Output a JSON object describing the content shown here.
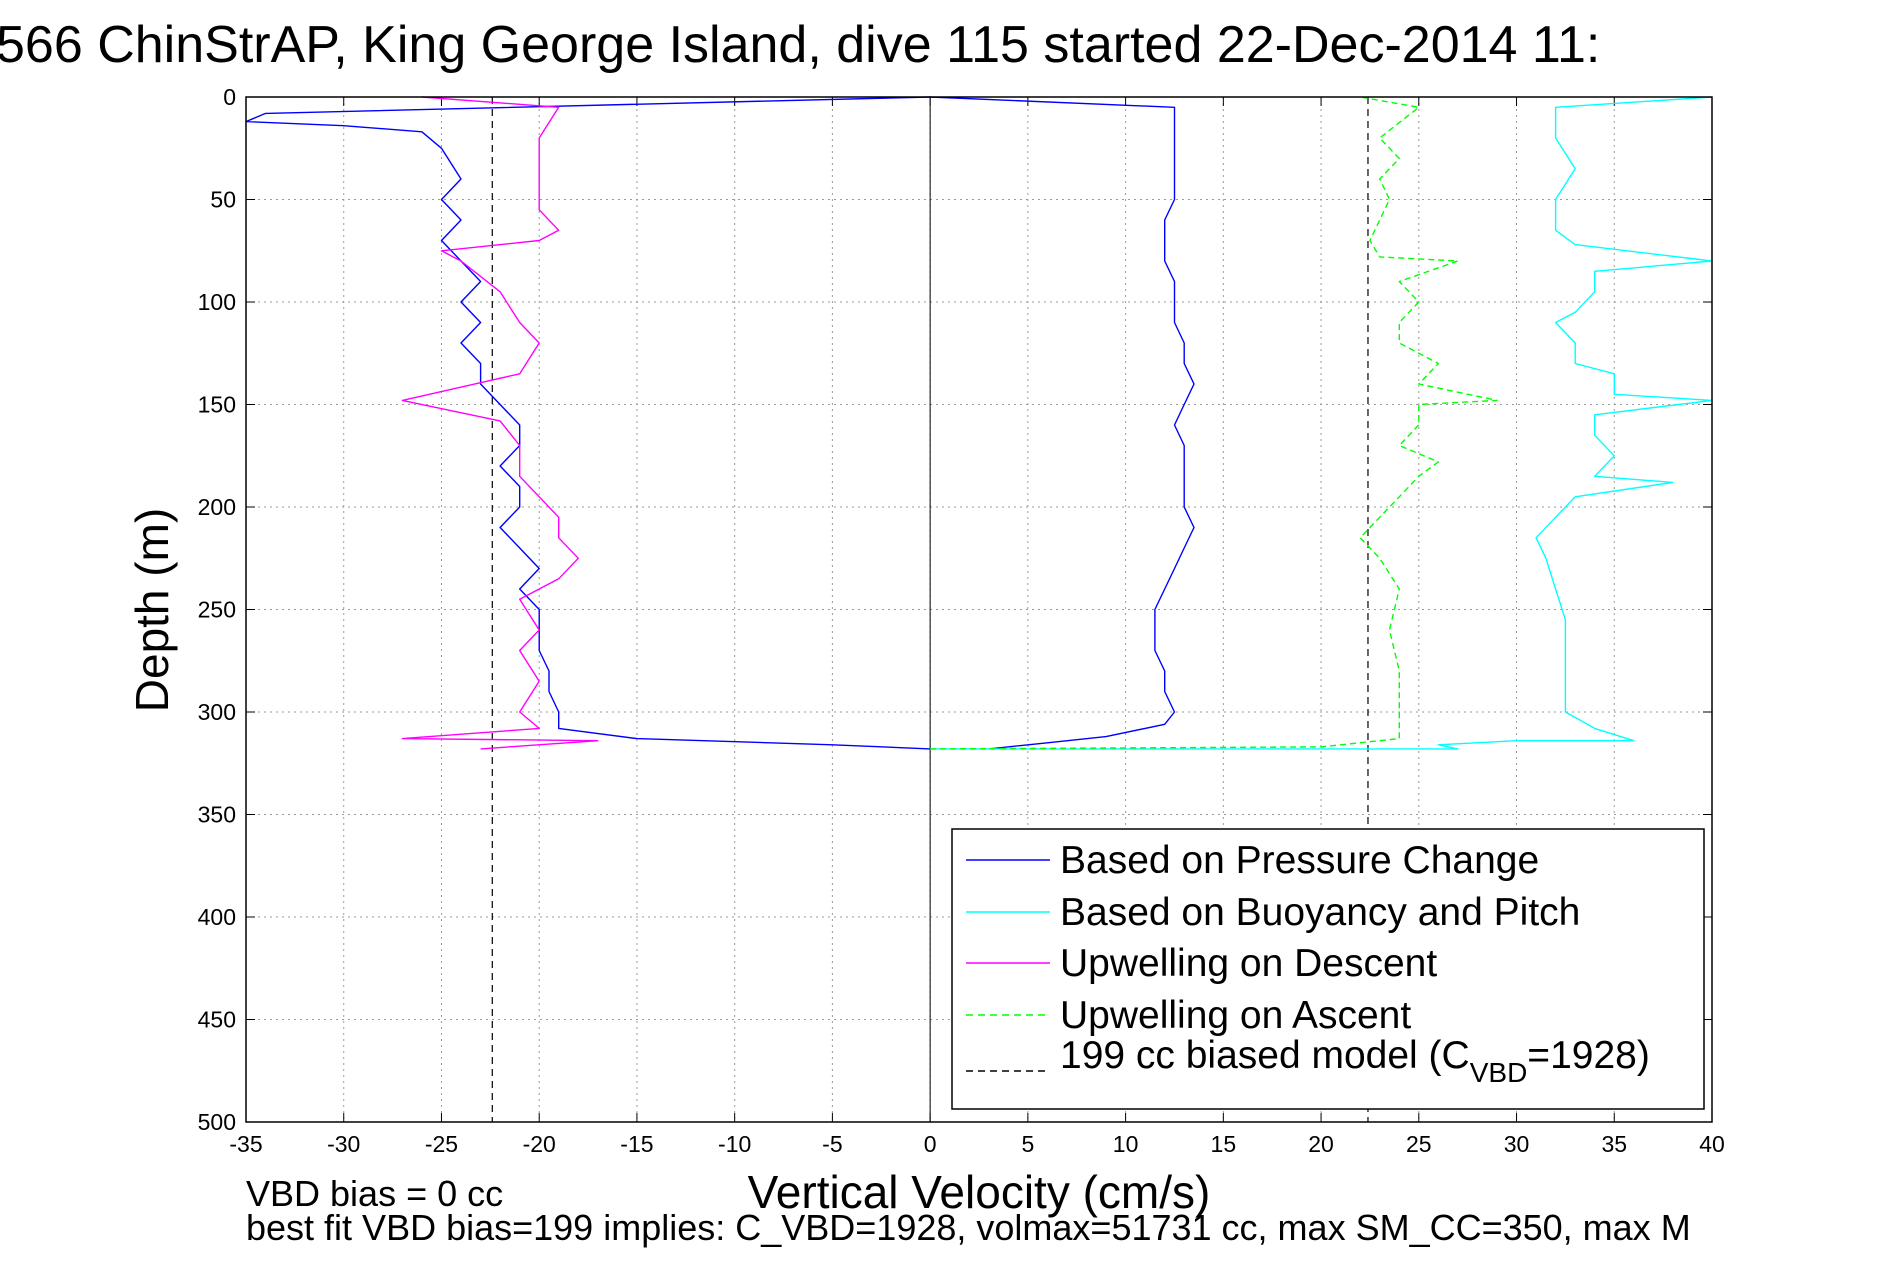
{
  "chart_data": {
    "type": "line",
    "title": "566 ChinStrAP, King George Island, dive 115 started 22-Dec-2014 11:",
    "xlabel": "Vertical Velocity (cm/s)",
    "ylabel": "Depth (m)",
    "xlim": [
      -35,
      40
    ],
    "ylim": [
      0,
      500
    ],
    "y_reversed": true,
    "grid": true,
    "legend_position": "bottom-right",
    "x_ticks": [
      "-35",
      "-30",
      "-25",
      "-20",
      "-15",
      "-10",
      "-5",
      "0",
      "5",
      "10",
      "15",
      "20",
      "25",
      "30",
      "35",
      "40"
    ],
    "y_ticks": [
      "0",
      "50",
      "100",
      "150",
      "200",
      "250",
      "300",
      "350",
      "400",
      "450",
      "500"
    ],
    "reference_lines": {
      "model_descent_x": -22.4,
      "model_ascent_x": 22.4,
      "zero_x": 0
    },
    "series": [
      {
        "name": "Based on Pressure Change",
        "color": "#0000ff",
        "style": "solid",
        "points": [
          [
            0,
            0
          ],
          [
            -34,
            8
          ],
          [
            -35,
            12
          ],
          [
            -30,
            14
          ],
          [
            -26,
            17
          ],
          [
            -25,
            25
          ],
          [
            -24,
            40
          ],
          [
            -25,
            50
          ],
          [
            -24,
            60
          ],
          [
            -25,
            70
          ],
          [
            -24,
            80
          ],
          [
            -23,
            90
          ],
          [
            -24,
            100
          ],
          [
            -23,
            110
          ],
          [
            -24,
            120
          ],
          [
            -23,
            130
          ],
          [
            -23,
            140
          ],
          [
            -22,
            150
          ],
          [
            -21,
            160
          ],
          [
            -21,
            170
          ],
          [
            -22,
            180
          ],
          [
            -21,
            190
          ],
          [
            -21,
            200
          ],
          [
            -22,
            210
          ],
          [
            -21,
            220
          ],
          [
            -20,
            230
          ],
          [
            -21,
            240
          ],
          [
            -20,
            250
          ],
          [
            -20,
            260
          ],
          [
            -20,
            270
          ],
          [
            -19.5,
            280
          ],
          [
            -19.5,
            290
          ],
          [
            -19,
            300
          ],
          [
            -19,
            308
          ],
          [
            -15,
            313
          ],
          [
            -5,
            316
          ],
          [
            0,
            318
          ]
        ],
        "ascent_points": [
          [
            3,
            318
          ],
          [
            6,
            315
          ],
          [
            9,
            312
          ],
          [
            12,
            306
          ],
          [
            12.5,
            300
          ],
          [
            12,
            290
          ],
          [
            12,
            280
          ],
          [
            11.5,
            270
          ],
          [
            11.5,
            260
          ],
          [
            11.5,
            250
          ],
          [
            12,
            240
          ],
          [
            12.5,
            230
          ],
          [
            13,
            220
          ],
          [
            13.5,
            210
          ],
          [
            13,
            200
          ],
          [
            13,
            190
          ],
          [
            13,
            180
          ],
          [
            13,
            170
          ],
          [
            12.5,
            160
          ],
          [
            13,
            150
          ],
          [
            13.5,
            140
          ],
          [
            13,
            130
          ],
          [
            13,
            120
          ],
          [
            12.5,
            110
          ],
          [
            12.5,
            100
          ],
          [
            12.5,
            90
          ],
          [
            12,
            80
          ],
          [
            12,
            70
          ],
          [
            12,
            60
          ],
          [
            12.5,
            50
          ],
          [
            12.5,
            40
          ],
          [
            12.5,
            30
          ],
          [
            12.5,
            20
          ],
          [
            12.5,
            5
          ],
          [
            0,
            0
          ]
        ]
      },
      {
        "name": "Based on Buoyancy and Pitch",
        "color": "#00ffff",
        "style": "solid",
        "points": [
          [
            40,
            0
          ],
          [
            32,
            5
          ],
          [
            32,
            20
          ],
          [
            33,
            35
          ],
          [
            32,
            50
          ],
          [
            32,
            65
          ],
          [
            33,
            72
          ],
          [
            40,
            80
          ],
          [
            34,
            85
          ],
          [
            34,
            95
          ],
          [
            33,
            105
          ],
          [
            32,
            110
          ],
          [
            33,
            120
          ],
          [
            33,
            130
          ],
          [
            35,
            135
          ],
          [
            35,
            145
          ],
          [
            40,
            148
          ],
          [
            34,
            155
          ],
          [
            34,
            165
          ],
          [
            35,
            175
          ],
          [
            34,
            185
          ],
          [
            38,
            188
          ],
          [
            33,
            195
          ],
          [
            32,
            205
          ],
          [
            31,
            215
          ],
          [
            31.5,
            225
          ],
          [
            32,
            240
          ],
          [
            32.5,
            255
          ],
          [
            32.5,
            270
          ],
          [
            32.5,
            285
          ],
          [
            32.5,
            300
          ],
          [
            34,
            308
          ],
          [
            36,
            314
          ],
          [
            30,
            314
          ],
          [
            26,
            316
          ],
          [
            27,
            318
          ],
          [
            0,
            318
          ]
        ]
      },
      {
        "name": "Upwelling on Descent",
        "color": "#ff00ff",
        "style": "solid",
        "points": [
          [
            -26,
            0
          ],
          [
            -19,
            5
          ],
          [
            -20,
            20
          ],
          [
            -20,
            40
          ],
          [
            -20,
            55
          ],
          [
            -19,
            65
          ],
          [
            -20,
            70
          ],
          [
            -25,
            75
          ],
          [
            -24,
            80
          ],
          [
            -22,
            95
          ],
          [
            -21,
            110
          ],
          [
            -20,
            120
          ],
          [
            -21,
            135
          ],
          [
            -27,
            148
          ],
          [
            -22,
            158
          ],
          [
            -21,
            170
          ],
          [
            -21,
            185
          ],
          [
            -20,
            195
          ],
          [
            -19,
            205
          ],
          [
            -19,
            215
          ],
          [
            -18,
            225
          ],
          [
            -19,
            235
          ],
          [
            -21,
            245
          ],
          [
            -20,
            260
          ],
          [
            -21,
            270
          ],
          [
            -20,
            285
          ],
          [
            -21,
            300
          ],
          [
            -20,
            308
          ],
          [
            -27,
            313
          ],
          [
            -17,
            314
          ],
          [
            -23,
            318
          ]
        ]
      },
      {
        "name": "Upwelling on Ascent",
        "color": "#00ff00",
        "style": "dashed",
        "points": [
          [
            0,
            318
          ],
          [
            20,
            317
          ],
          [
            24,
            313
          ],
          [
            24,
            300
          ],
          [
            24,
            280
          ],
          [
            23.5,
            260
          ],
          [
            24,
            240
          ],
          [
            23,
            225
          ],
          [
            22,
            215
          ],
          [
            23,
            205
          ],
          [
            24,
            195
          ],
          [
            25,
            185
          ],
          [
            26,
            178
          ],
          [
            24,
            170
          ],
          [
            25,
            160
          ],
          [
            25,
            150
          ],
          [
            29,
            148
          ],
          [
            25,
            140
          ],
          [
            26,
            130
          ],
          [
            24,
            120
          ],
          [
            24,
            110
          ],
          [
            25,
            100
          ],
          [
            24,
            90
          ],
          [
            27,
            80
          ],
          [
            23,
            78
          ],
          [
            22.5,
            70
          ],
          [
            23,
            60
          ],
          [
            23.5,
            50
          ],
          [
            23,
            40
          ],
          [
            24,
            30
          ],
          [
            23,
            20
          ],
          [
            25,
            5
          ],
          [
            22,
            0
          ]
        ]
      },
      {
        "name": "199 cc biased model (C",
        "name_subscript": "VBD",
        "name_suffix": "=1928)",
        "color": "#000000",
        "style": "dashed"
      }
    ]
  },
  "notes": {
    "line1": "VBD bias = 0 cc",
    "line2": "best fit VBD bias=199 implies: C_VBD=1928, volmax=51731 cc, max SM_CC=350, max M"
  }
}
